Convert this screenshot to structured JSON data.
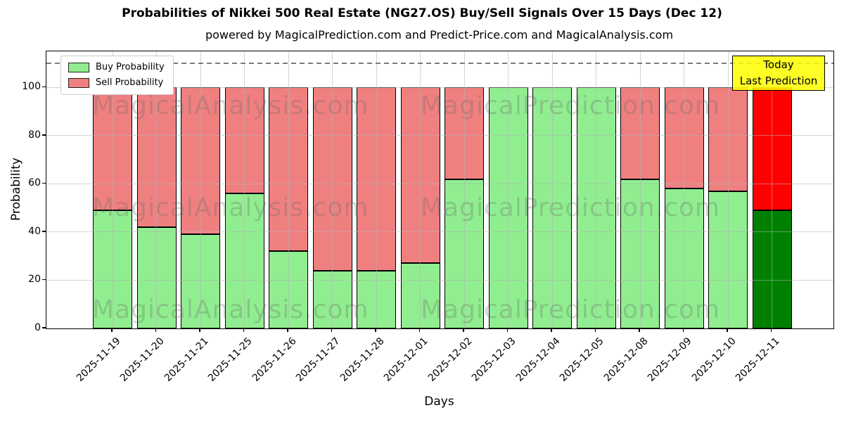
{
  "title": "Probabilities of Nikkei 500 Real Estate (NG27.OS) Buy/Sell Signals Over 15 Days (Dec 12)",
  "subtitle": "powered by MagicalPrediction.com and Predict-Price.com and MagicalAnalysis.com",
  "axes": {
    "xlabel": "Days",
    "ylabel": "Probability",
    "yticks": [
      0,
      20,
      40,
      60,
      80,
      100
    ],
    "ylim": [
      0,
      115
    ],
    "threshold_line_y": 110,
    "grid": true
  },
  "legend": {
    "position": "upper-left",
    "items": [
      {
        "label": "Buy Probability",
        "color": "#90EE90"
      },
      {
        "label": "Sell Probability",
        "color": "#F08080"
      }
    ]
  },
  "annotation": {
    "line1": "Today",
    "line2": "Last Prediction",
    "bg_color": "#FFFF00"
  },
  "watermarks": {
    "left_text": "MagicalAnalysis.com",
    "right_text": "MagicalPrediction.com"
  },
  "colors": {
    "buy": "#90EE90",
    "sell": "#F08080",
    "today_buy": "#008000",
    "today_sell": "#FF0000",
    "bar_edge": "#000000",
    "grid": "#b0b0b0"
  },
  "chart_data": {
    "type": "bar",
    "stacked": true,
    "title": "Probabilities of Nikkei 500 Real Estate (NG27.OS) Buy/Sell Signals Over 15 Days (Dec 12)",
    "xlabel": "Days",
    "ylabel": "Probability",
    "ylim": [
      0,
      115
    ],
    "legend_position": "upper left",
    "categories": [
      "2025-11-19",
      "2025-11-20",
      "2025-11-21",
      "2025-11-25",
      "2025-11-26",
      "2025-11-27",
      "2025-11-28",
      "2025-12-01",
      "2025-12-02",
      "2025-12-03",
      "2025-12-04",
      "2025-12-05",
      "2025-12-08",
      "2025-12-09",
      "2025-12-10",
      "2025-12-11"
    ],
    "series": [
      {
        "name": "Buy Probability",
        "color": "#90EE90",
        "values": [
          49,
          42,
          39,
          56,
          32,
          24,
          24,
          27,
          62,
          100,
          100,
          100,
          62,
          58,
          57,
          49
        ]
      },
      {
        "name": "Sell Probability",
        "color": "#F08080",
        "values": [
          51,
          58,
          61,
          44,
          68,
          76,
          76,
          73,
          38,
          0,
          0,
          0,
          38,
          42,
          43,
          51
        ]
      }
    ],
    "today": {
      "index": 15,
      "category": "2025-12-11",
      "buy_color": "#008000",
      "sell_color": "#FF0000"
    }
  }
}
